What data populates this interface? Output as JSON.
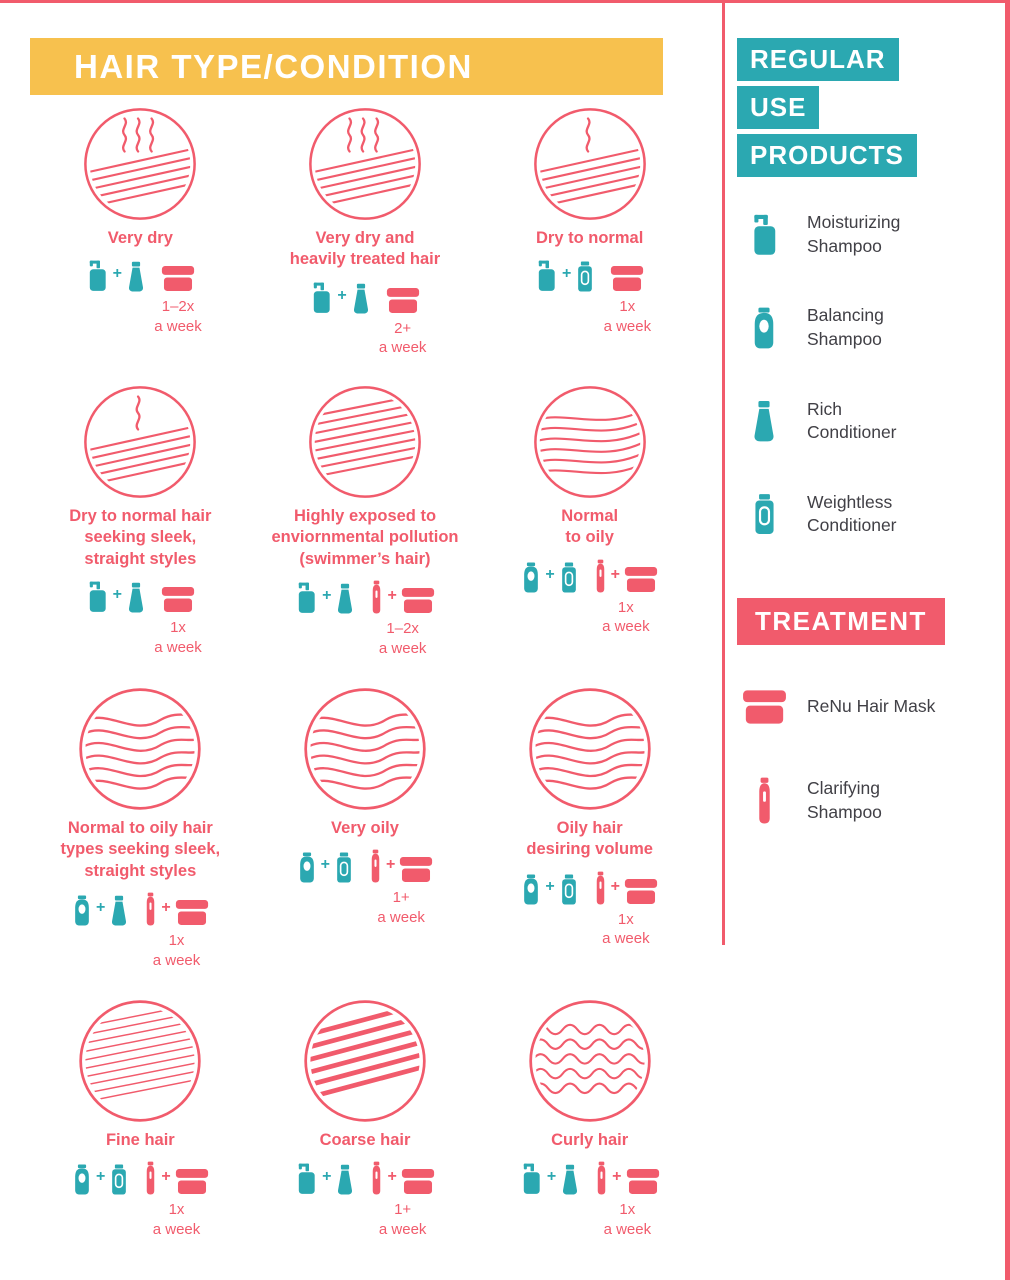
{
  "colors": {
    "yellow": "#F7C14E",
    "teal": "#2BA8B1",
    "pink": "#F15B6C",
    "ink": "#414046"
  },
  "title": "HAIR TYPE/CONDITION",
  "grid": {
    "cells": [
      {
        "label": [
          "Very dry"
        ],
        "art": "dry3",
        "teal": [
          "pump",
          "tube"
        ],
        "pink": [
          "jar"
        ],
        "freq": "1–2x",
        "unit": "a week"
      },
      {
        "label": [
          "Very dry and",
          "heavily treated hair"
        ],
        "art": "dry3",
        "teal": [
          "pump",
          "tube"
        ],
        "pink": [
          "jar"
        ],
        "freq": "2+",
        "unit": "a week"
      },
      {
        "label": [
          "Dry to normal"
        ],
        "art": "dry1",
        "teal": [
          "pump",
          "flat"
        ],
        "pink": [
          "jar"
        ],
        "freq": "1x",
        "unit": "a week"
      },
      {
        "label": [
          "Dry to normal hair",
          "seeking sleek,",
          "straight styles"
        ],
        "art": "dry1",
        "teal": [
          "pump",
          "tube"
        ],
        "pink": [
          "jar"
        ],
        "freq": "1x",
        "unit": "a week"
      },
      {
        "label": [
          "Highly exposed to",
          "enviornmental pollution",
          "(swimmer’s hair)"
        ],
        "art": "straight",
        "teal": [
          "pump",
          "tube"
        ],
        "pink": [
          "slim",
          "jar"
        ],
        "freq": "1–2x",
        "unit": "a week"
      },
      {
        "label": [
          "Normal",
          "to oily"
        ],
        "art": "softwave",
        "teal": [
          "round",
          "flat"
        ],
        "pink": [
          "slim",
          "jar"
        ],
        "freq": "1x",
        "unit": "a week"
      },
      {
        "label": [
          "Normal to oily hair",
          "types seeking sleek,",
          "straight styles"
        ],
        "art": "wave",
        "teal": [
          "round",
          "tube"
        ],
        "pink": [
          "slim",
          "jar"
        ],
        "freq": "1x",
        "unit": "a week"
      },
      {
        "label": [
          "Very oily"
        ],
        "art": "wave",
        "teal": [
          "round",
          "flat"
        ],
        "pink": [
          "slim",
          "jar"
        ],
        "freq": "1+",
        "unit": "a week"
      },
      {
        "label": [
          "Oily hair",
          "desiring volume"
        ],
        "art": "wave",
        "teal": [
          "round",
          "flat"
        ],
        "pink": [
          "slim",
          "jar"
        ],
        "freq": "1x",
        "unit": "a week"
      },
      {
        "label": [
          "Fine hair"
        ],
        "art": "fine",
        "teal": [
          "round",
          "flat"
        ],
        "pink": [
          "slim",
          "jar"
        ],
        "freq": "1x",
        "unit": "a week"
      },
      {
        "label": [
          "Coarse hair"
        ],
        "art": "coarse",
        "teal": [
          "pump",
          "tube"
        ],
        "pink": [
          "slim",
          "jar"
        ],
        "freq": "1+",
        "unit": "a week"
      },
      {
        "label": [
          "Curly hair"
        ],
        "art": "curly",
        "teal": [
          "pump",
          "tube"
        ],
        "pink": [
          "slim",
          "jar"
        ],
        "freq": "1x",
        "unit": "a week"
      }
    ]
  },
  "sidebar": {
    "banner": [
      "REGULAR",
      "USE",
      "PRODUCTS"
    ],
    "regular_products": [
      {
        "icon": "pump",
        "label": [
          "Moisturizing",
          "Shampoo"
        ]
      },
      {
        "icon": "round",
        "label": [
          "Balancing",
          "Shampoo"
        ]
      },
      {
        "icon": "tube",
        "label": [
          "Rich",
          "Conditioner"
        ]
      },
      {
        "icon": "flat",
        "label": [
          "Weightless",
          "Conditioner"
        ]
      }
    ],
    "treatment_label": "TREATMENT",
    "treatment_products": [
      {
        "icon": "jar",
        "label": [
          "ReNu Hair Mask"
        ]
      },
      {
        "icon": "slim",
        "label": [
          "Clarifying",
          "Shampoo"
        ]
      }
    ]
  }
}
